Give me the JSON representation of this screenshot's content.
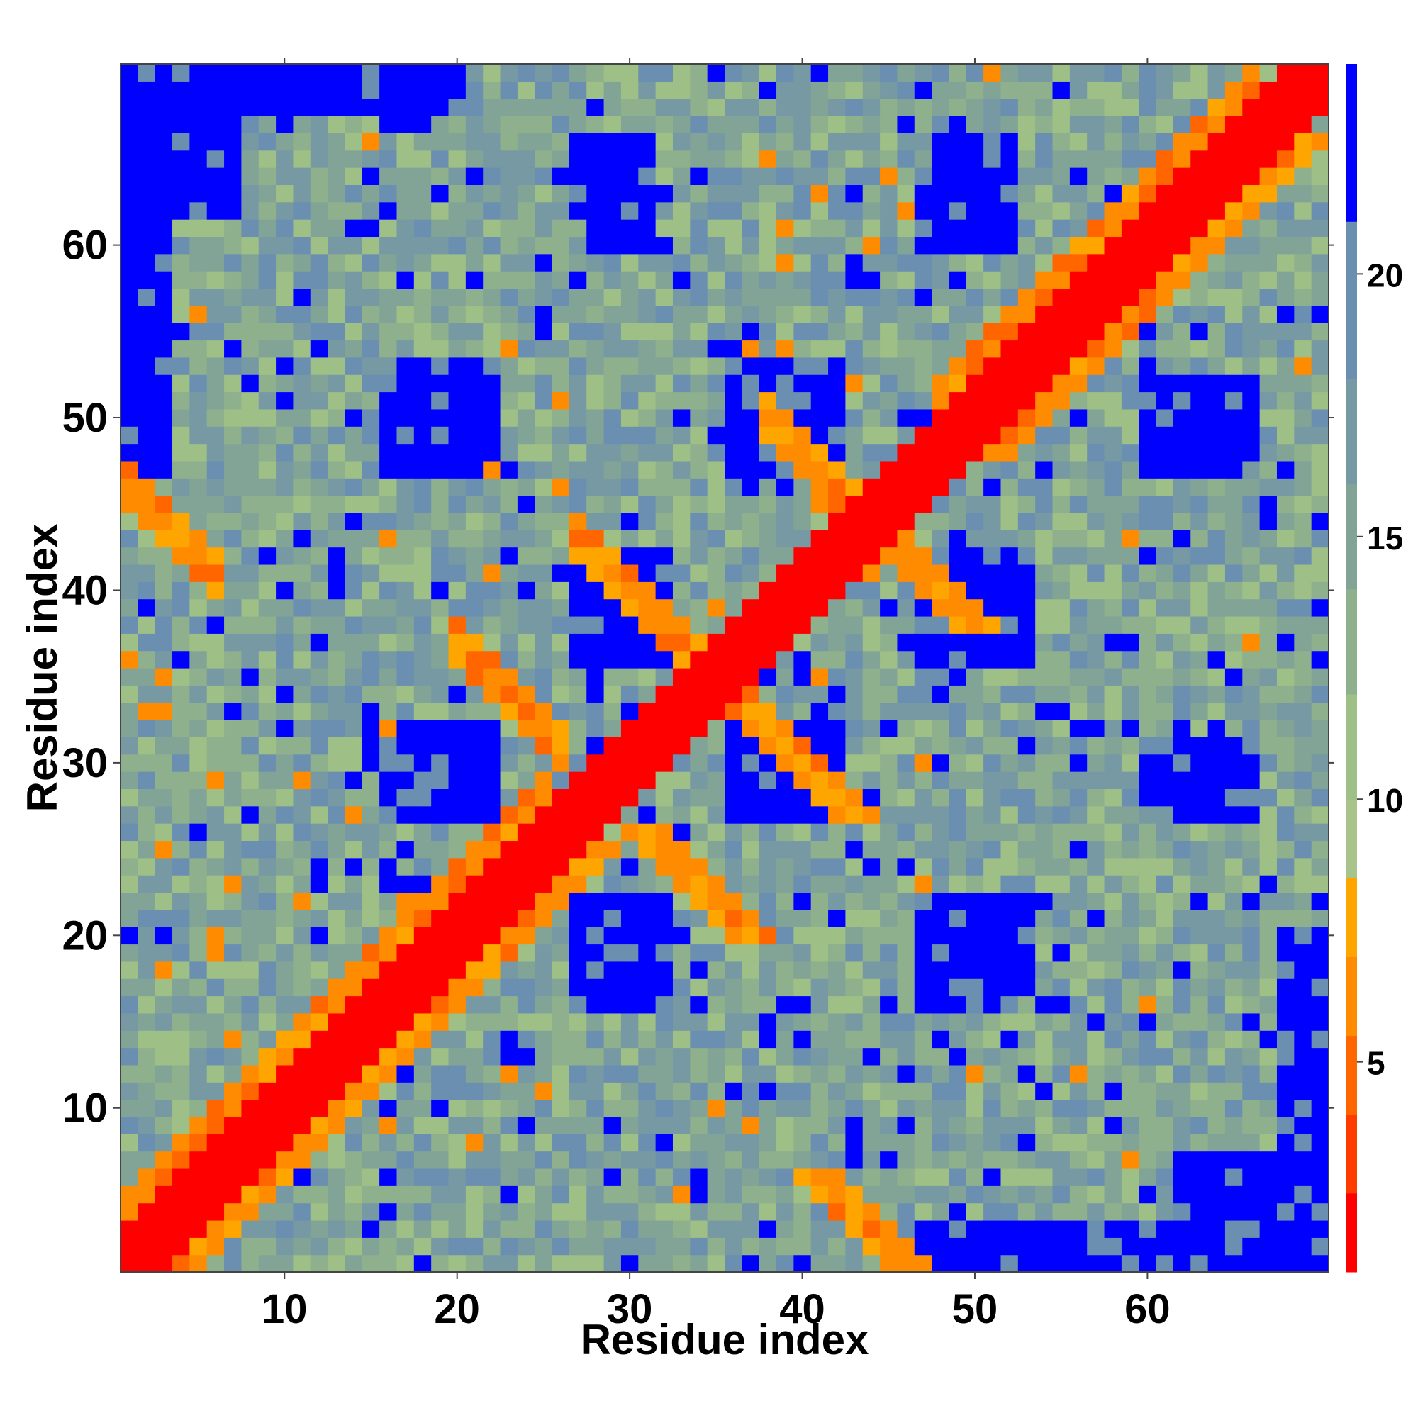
{
  "chart_data": {
    "type": "heatmap",
    "title": "",
    "xlabel": "Residue index",
    "ylabel": "Residue index",
    "n_residues": 70,
    "x_range": [
      0.5,
      70.5
    ],
    "y_range": [
      0.5,
      70.5
    ],
    "x_ticks": [
      10,
      20,
      30,
      40,
      50,
      60
    ],
    "y_ticks": [
      10,
      20,
      30,
      40,
      50,
      60
    ],
    "colorbar": {
      "ticks": [
        5,
        10,
        15,
        20
      ],
      "range": [
        1,
        24
      ],
      "bands": [
        {
          "from": 1,
          "to": 2.5,
          "color": "#ff0000"
        },
        {
          "from": 2.5,
          "to": 4,
          "color": "#ff3c00"
        },
        {
          "from": 4,
          "to": 5.5,
          "color": "#ff6600"
        },
        {
          "from": 5.5,
          "to": 7,
          "color": "#ff8c00"
        },
        {
          "from": 7,
          "to": 8.5,
          "color": "#ffa500"
        },
        {
          "from": 8.5,
          "to": 10,
          "color": "#a8c48a"
        },
        {
          "from": 10,
          "to": 12,
          "color": "#9ebf86"
        },
        {
          "from": 12,
          "to": 14,
          "color": "#8fb08c"
        },
        {
          "from": 14,
          "to": 16,
          "color": "#82a497"
        },
        {
          "from": 16,
          "to": 18,
          "color": "#7799a3"
        },
        {
          "from": 18,
          "to": 21,
          "color": "#6a8fb0"
        },
        {
          "from": 21,
          "to": 24,
          "color": "#0000ff"
        }
      ]
    },
    "contact_features": {
      "diagonal_band_width": 2,
      "near_diagonal_orange": [
        {
          "segment": [
            1,
            25
          ],
          "offsets": [
            3,
            4
          ]
        },
        {
          "segment": [
            48,
            66
          ],
          "offsets": [
            3,
            4
          ]
        }
      ],
      "antiparallel_contacts": [
        {
          "i_range": [
            20,
            26
          ],
          "j_sum": 57
        },
        {
          "i_range": [
            27,
            38
          ],
          "j_sum": 70
        },
        {
          "i_range": [
            38,
            46
          ],
          "j_sum": 88
        },
        {
          "i_range": [
            1,
            6
          ],
          "j_sum": 47
        },
        {
          "i_range": [
            62,
            69
          ],
          "j_sum": 92
        }
      ],
      "blue_blocks": [
        {
          "x": [
            16,
            21
          ],
          "y": [
            28,
            31
          ]
        },
        {
          "x": [
            27,
            32
          ],
          "y": [
            17,
            22
          ]
        },
        {
          "x": [
            27,
            32
          ],
          "y": [
            37,
            42
          ]
        },
        {
          "x": [
            36,
            41
          ],
          "y": [
            27,
            32
          ]
        },
        {
          "x": [
            16,
            21
          ],
          "y": [
            47,
            52
          ]
        },
        {
          "x": [
            36,
            41
          ],
          "y": [
            47,
            53
          ]
        },
        {
          "x": [
            27,
            31
          ],
          "y": [
            62,
            66
          ]
        },
        {
          "x": [
            48,
            53
          ],
          "y": [
            37,
            42
          ]
        },
        {
          "x": [
            48,
            53
          ],
          "y": [
            17,
            22
          ]
        },
        {
          "x": [
            60,
            64
          ],
          "y": [
            28,
            31
          ]
        },
        {
          "x": [
            60,
            64
          ],
          "y": [
            47,
            52
          ]
        },
        {
          "x": [
            48,
            52
          ],
          "y": [
            62,
            66
          ]
        },
        {
          "x": [
            62,
            70
          ],
          "y": [
            1,
            7
          ]
        },
        {
          "x": [
            1,
            3
          ],
          "y": [
            47,
            70
          ]
        },
        {
          "x": [
            1,
            20
          ],
          "y": [
            68,
            70
          ]
        }
      ]
    }
  }
}
